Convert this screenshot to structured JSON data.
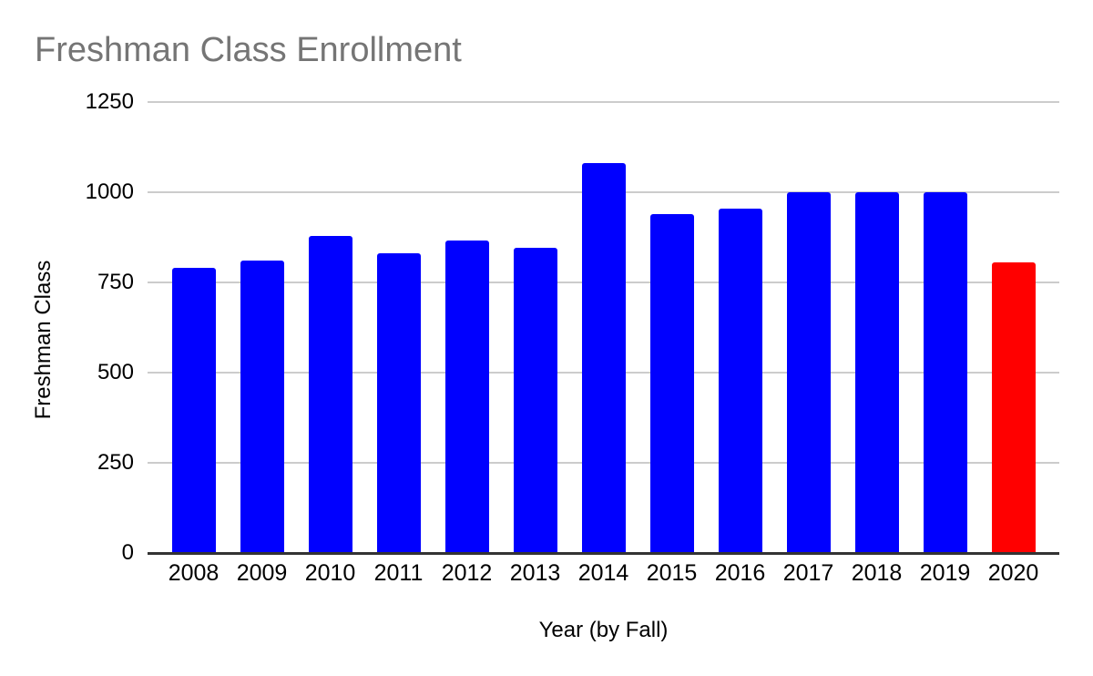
{
  "page": {
    "background": "#ffffff"
  },
  "chart_data": {
    "type": "bar",
    "title": "Freshman Class Enrollment",
    "xlabel": "Year (by Fall)",
    "ylabel": "Freshman Class",
    "categories": [
      "2008",
      "2009",
      "2010",
      "2011",
      "2012",
      "2013",
      "2014",
      "2015",
      "2016",
      "2017",
      "2018",
      "2019",
      "2020"
    ],
    "values": [
      790,
      810,
      880,
      830,
      865,
      845,
      1080,
      940,
      955,
      1000,
      1000,
      1000,
      805
    ],
    "bar_colors": [
      "#0000ff",
      "#0000ff",
      "#0000ff",
      "#0000ff",
      "#0000ff",
      "#0000ff",
      "#0000ff",
      "#0000ff",
      "#0000ff",
      "#0000ff",
      "#0000ff",
      "#0000ff",
      "#ff0000"
    ],
    "ylim": [
      0,
      1250
    ],
    "yticks": [
      0,
      250,
      500,
      750,
      1000,
      1250
    ],
    "grid": true,
    "legend": "none",
    "colors": {
      "default_bar": "#0000ff",
      "highlight_bar": "#ff0000",
      "title_text": "#757575",
      "axis_text": "#000000",
      "gridline": "#cccccc",
      "axis_line": "#333333"
    }
  }
}
